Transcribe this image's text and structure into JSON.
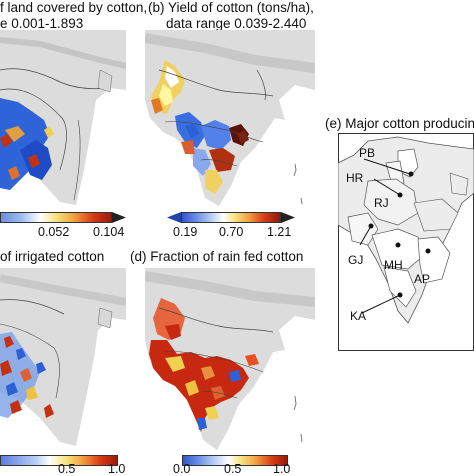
{
  "panels": [
    {
      "title_line1": "f land covered by cotton,",
      "title_line2": "e 0.001-1.893",
      "colorbar_ticks": [
        "0.052",
        "0.104"
      ]
    },
    {
      "title_line1": "(b) Yield of cotton (tons/ha),",
      "title_line2": "data range 0.039-2.440",
      "colorbar_ticks": [
        "0.19",
        "0.70",
        "1.21"
      ]
    },
    {
      "title_line1": "(e) Major cotton producing"
    },
    {
      "title_line1": "of irrigated cotton",
      "colorbar_ticks": [
        "0.5",
        "1.0"
      ]
    },
    {
      "title_line1": "(d)  Fraction of rain fed cotton",
      "colorbar_ticks": [
        "0.0",
        "0.5",
        "1.0"
      ]
    }
  ],
  "states": [
    "PB",
    "HR",
    "RJ",
    "GJ",
    "MH",
    "AP",
    "KA"
  ],
  "colors": {
    "land": "#ececec",
    "relief": "#c9c9c9",
    "water": "#ffffff",
    "blue": "#2d5fd6",
    "red": "#c62810",
    "dark": "#5a1205"
  }
}
